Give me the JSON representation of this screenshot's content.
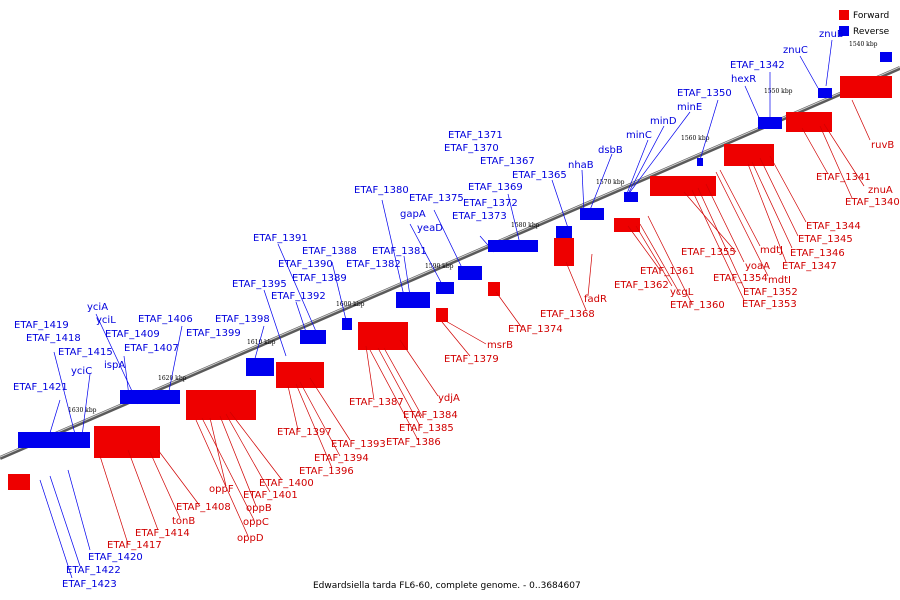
{
  "caption": "Edwardsiella tarda FL6-60, complete genome. - 0..3684607",
  "legend": [
    {
      "label": "Forward",
      "color": "#ee0000"
    },
    {
      "label": "Reverse",
      "color": "#0000ee"
    }
  ],
  "colors": {
    "forward": "#ee0000",
    "reverse": "#0000ee",
    "axis": "#6a6a6a"
  },
  "scale_ticks": [
    "1540 kbp",
    "1550 kbp",
    "1560 kbp",
    "1570 kbp",
    "1580 kbp",
    "1590 kbp",
    "1600 kbp",
    "1610 kbp",
    "1620 kbp",
    "1630 kbp"
  ],
  "reverse_genes": [
    "znuB",
    "znuC",
    "ETAF_1342",
    "hexR",
    "ETAF_1350",
    "minE",
    "minD",
    "minC",
    "dsbB",
    "nhaB",
    "ETAF_1365",
    "ETAF_1367",
    "ETAF_1369",
    "ETAF_1370",
    "ETAF_1371",
    "ETAF_1372",
    "ETAF_1373",
    "ETAF_1375",
    "yeaD",
    "gapA",
    "ETAF_1380",
    "ETAF_1381",
    "ETAF_1382",
    "ETAF_1388",
    "ETAF_1389",
    "ETAF_1390",
    "ETAF_1391",
    "ETAF_1392",
    "ETAF_1395",
    "ETAF_1398",
    "ETAF_1399",
    "ETAF_1406",
    "ETAF_1407",
    "ETAF_1409",
    "ispA",
    "yciL",
    "yciA",
    "ETAF_1415",
    "ETAF_1418",
    "ETAF_1419",
    "yciC",
    "ETAF_1421",
    "ETAF_1420",
    "ETAF_1422",
    "ETAF_1423"
  ],
  "forward_genes": [
    "ruvB",
    "ETAF_1341",
    "znuA",
    "ETAF_1340",
    "ETAF_1344",
    "ETAF_1345",
    "ETAF_1346",
    "ETAF_1347",
    "mdtJ",
    "mdtI",
    "yoaA",
    "ETAF_1354",
    "ETAF_1352",
    "ETAF_1353",
    "ETAF_1355",
    "ETAF_1361",
    "ETAF_1362",
    "ycgL",
    "ETAF_1360",
    "fadR",
    "ETAF_1368",
    "ETAF_1374",
    "msrB",
    "ETAF_1379",
    "ydjA",
    "ETAF_1387",
    "ETAF_1384",
    "ETAF_1385",
    "ETAF_1386",
    "ETAF_1393",
    "ETAF_1394",
    "ETAF_1396",
    "ETAF_1397",
    "ETAF_1400",
    "ETAF_1401",
    "oppF",
    "oppB",
    "oppC",
    "oppD",
    "ETAF_1408",
    "tonB",
    "ETAF_1414",
    "ETAF_1417"
  ]
}
